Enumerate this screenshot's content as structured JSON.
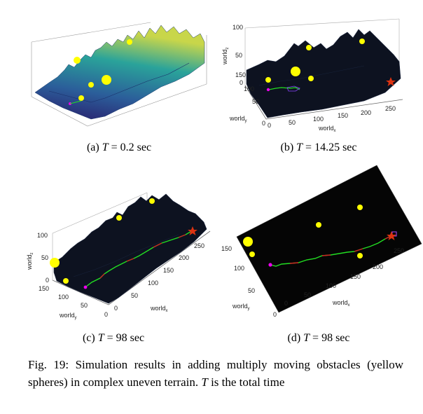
{
  "figure": {
    "caption_label": "Fig. 19:",
    "caption_text_1": "Simulation results in adding multiply moving obstacles (yellow spheres) in complex uneven terrain.",
    "caption_T": "T",
    "caption_text_2": "is the total time"
  },
  "subfigures": [
    {
      "label": "(a)",
      "var": "T",
      "value": "= 0.2 sec"
    },
    {
      "label": "(b)",
      "var": "T",
      "value": "= 14.25 sec"
    },
    {
      "label": "(c)",
      "var": "T",
      "value": "= 98 sec"
    },
    {
      "label": "(d)",
      "var": "T",
      "value": "= 98 sec"
    }
  ],
  "axes": {
    "x_label": "world",
    "x_sub": "x",
    "y_label": "world",
    "y_sub": "y",
    "z_label": "world",
    "z_sub": "z",
    "b_x_ticks": [
      "0",
      "50",
      "100",
      "150",
      "200",
      "250"
    ],
    "b_y_ticks": [
      "0",
      "50",
      "100",
      "150"
    ],
    "b_z_ticks": [
      "0",
      "50",
      "100"
    ],
    "c_x_ticks": [
      "0",
      "50",
      "100",
      "150",
      "200",
      "250"
    ],
    "c_y_ticks": [
      "0",
      "50",
      "100",
      "150"
    ],
    "c_z_ticks": [
      "0",
      "50",
      "100"
    ],
    "d_x_ticks": [
      "0",
      "50",
      "100",
      "150",
      "200",
      "250"
    ],
    "d_y_ticks": [
      "0",
      "50",
      "100",
      "150"
    ]
  },
  "colors": {
    "terrain_dark": "#0b0f1c",
    "obstacle": "#ffff00",
    "path_green": "#22dd22",
    "path_red": "#cc2222",
    "start": "#ee00ee",
    "goal": "#dd3311"
  }
}
